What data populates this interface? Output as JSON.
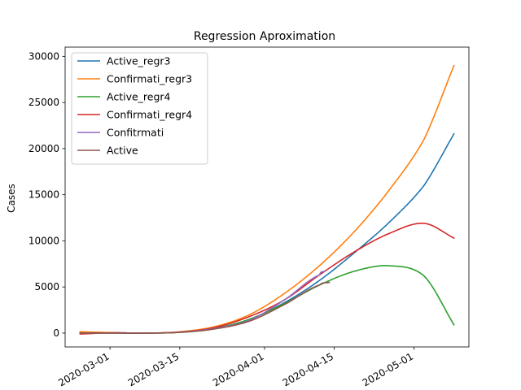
{
  "chart_data": {
    "type": "line",
    "title": "Regression Aproximation",
    "xlabel": "",
    "ylabel": "Cases",
    "x_axis": "date",
    "xlim": [
      "2020-02-21",
      "2020-05-12"
    ],
    "ylim": [
      -1500,
      31000
    ],
    "x_ticks": [
      "2020-03-01",
      "2020-03-15",
      "2020-04-01",
      "2020-04-15",
      "2020-05-01"
    ],
    "x_tick_labels": [
      "2020-03-01",
      "2020-03-15",
      "2020-04-01",
      "2020-04-15",
      "2020-05-01"
    ],
    "x_tick_rotation": 30,
    "y_ticks": [
      0,
      5000,
      10000,
      15000,
      20000,
      25000,
      30000
    ],
    "y_tick_labels": [
      "0",
      "5000",
      "10000",
      "15000",
      "20000",
      "25000",
      "30000"
    ],
    "grid": false,
    "legend_position": "top-left",
    "series": [
      {
        "name": "Active_regr3",
        "color": "#1f77b4",
        "points": [
          [
            "2020-02-24",
            100
          ],
          [
            "2020-03-01",
            50
          ],
          [
            "2020-03-08",
            0
          ],
          [
            "2020-03-15",
            100
          ],
          [
            "2020-03-22",
            500
          ],
          [
            "2020-03-29",
            1500
          ],
          [
            "2020-04-05",
            3300
          ],
          [
            "2020-04-12",
            5700
          ],
          [
            "2020-04-19",
            8700
          ],
          [
            "2020-04-26",
            12000
          ],
          [
            "2020-05-03",
            16000
          ],
          [
            "2020-05-09",
            21600
          ]
        ]
      },
      {
        "name": "Confirmati_regr3",
        "color": "#ff7f0e",
        "points": [
          [
            "2020-02-24",
            150
          ],
          [
            "2020-03-01",
            60
          ],
          [
            "2020-03-08",
            0
          ],
          [
            "2020-03-15",
            150
          ],
          [
            "2020-03-22",
            700
          ],
          [
            "2020-03-29",
            2000
          ],
          [
            "2020-04-05",
            4300
          ],
          [
            "2020-04-12",
            7300
          ],
          [
            "2020-04-19",
            11000
          ],
          [
            "2020-04-26",
            15500
          ],
          [
            "2020-05-03",
            21000
          ],
          [
            "2020-05-09",
            29000
          ]
        ]
      },
      {
        "name": "Active_regr4",
        "color": "#2ca02c",
        "points": [
          [
            "2020-02-24",
            0
          ],
          [
            "2020-03-01",
            0
          ],
          [
            "2020-03-08",
            0
          ],
          [
            "2020-03-15",
            80
          ],
          [
            "2020-03-22",
            500
          ],
          [
            "2020-03-29",
            1500
          ],
          [
            "2020-04-05",
            3200
          ],
          [
            "2020-04-12",
            5200
          ],
          [
            "2020-04-19",
            6700
          ],
          [
            "2020-04-26",
            7300
          ],
          [
            "2020-05-03",
            6200
          ],
          [
            "2020-05-09",
            900
          ]
        ]
      },
      {
        "name": "Confirmati_regr4",
        "color": "#d62728",
        "points": [
          [
            "2020-02-24",
            -100
          ],
          [
            "2020-03-01",
            30
          ],
          [
            "2020-03-08",
            0
          ],
          [
            "2020-03-15",
            100
          ],
          [
            "2020-03-22",
            600
          ],
          [
            "2020-03-29",
            1800
          ],
          [
            "2020-04-05",
            3600
          ],
          [
            "2020-04-12",
            6300
          ],
          [
            "2020-04-19",
            8800
          ],
          [
            "2020-04-26",
            10800
          ],
          [
            "2020-05-03",
            11900
          ],
          [
            "2020-05-09",
            10300
          ]
        ]
      },
      {
        "name": "Confitrmati",
        "color": "#9467bd",
        "points": [
          [
            "2020-02-24",
            0
          ],
          [
            "2020-03-01",
            0
          ],
          [
            "2020-03-08",
            0
          ],
          [
            "2020-03-15",
            100
          ],
          [
            "2020-03-22",
            500
          ],
          [
            "2020-03-29",
            1400
          ],
          [
            "2020-04-05",
            3600
          ],
          [
            "2020-04-12",
            6300
          ],
          [
            "2020-04-13",
            6700
          ]
        ]
      },
      {
        "name": "Active",
        "color": "#8c564b",
        "points": [
          [
            "2020-02-24",
            0
          ],
          [
            "2020-03-01",
            0
          ],
          [
            "2020-03-08",
            0
          ],
          [
            "2020-03-15",
            80
          ],
          [
            "2020-03-22",
            450
          ],
          [
            "2020-03-29",
            1300
          ],
          [
            "2020-04-05",
            3100
          ],
          [
            "2020-04-12",
            5200
          ],
          [
            "2020-04-14",
            5500
          ]
        ]
      }
    ]
  }
}
